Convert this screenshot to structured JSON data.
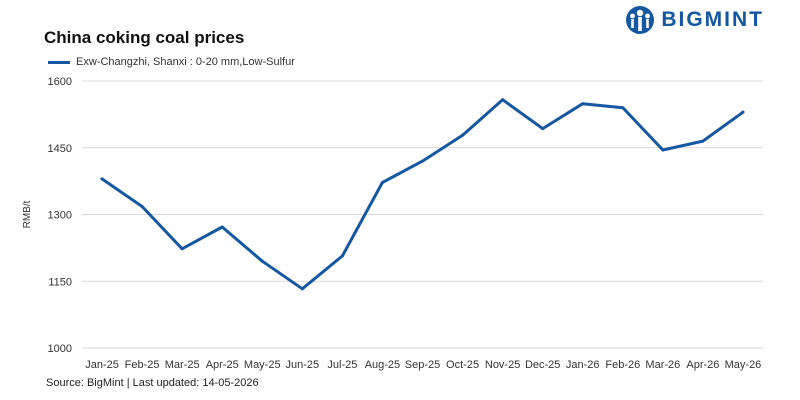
{
  "brand": {
    "name": "BIGMINT",
    "color": "#1557a0"
  },
  "source_text": "Source: BigMint | Last updated: 14-05-2026",
  "chart_data": {
    "type": "line",
    "title": "China coking coal prices",
    "ylabel": "RMB/t",
    "xlabel": "",
    "categories": [
      "Jan-25",
      "Feb-25",
      "Mar-25",
      "Apr-25",
      "May-25",
      "Jun-25",
      "Jul-25",
      "Aug-25",
      "Sep-25",
      "Oct-25",
      "Nov-25",
      "Dec-25",
      "Jan-26",
      "Feb-26",
      "Mar-26",
      "Apr-26",
      "May-26"
    ],
    "series": [
      {
        "name": "Exw-Changzhi, Shanxi : 0-20 mm,Low-Sulfur",
        "color": "#1557a0",
        "values": [
          1380,
          1318,
          1223,
          1272,
          1195,
          1133,
          1207,
          1372,
          1420,
          1478,
          1558,
          1493,
          1549,
          1540,
          1445,
          1465,
          1530
        ]
      }
    ],
    "ylim": [
      1000,
      1600
    ],
    "yticks": [
      1000,
      1150,
      1300,
      1450,
      1600
    ],
    "grid": true,
    "legend_position": "top-left"
  }
}
